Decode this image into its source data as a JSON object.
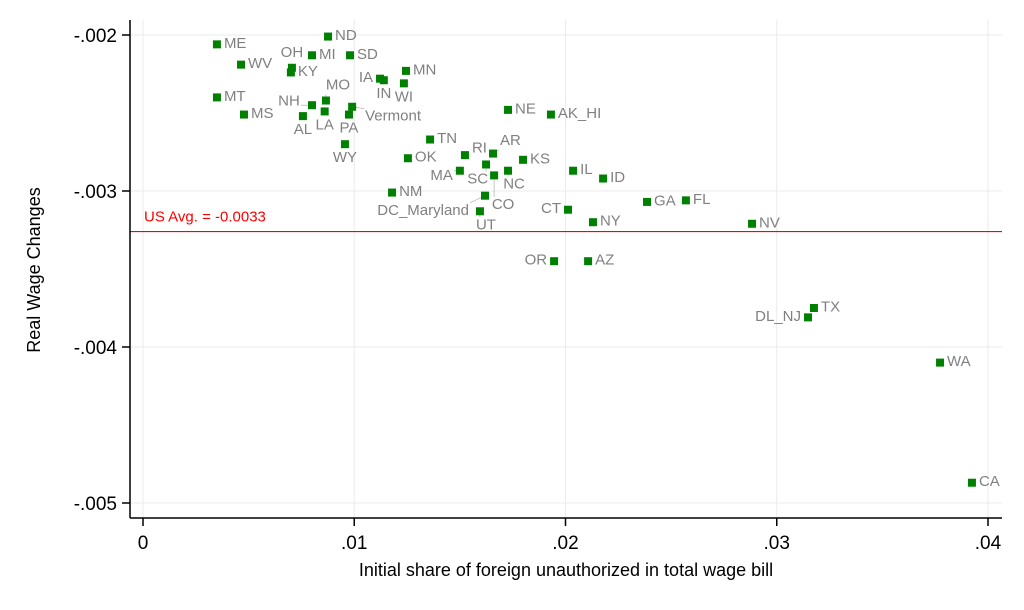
{
  "chart_data": {
    "type": "scatter",
    "title": "",
    "xlabel": "Initial share of foreign unauthorized in total wage bill",
    "ylabel": "Real Wage Changes",
    "xlim": [
      -0.0003,
      0.0406
    ],
    "ylim": [
      -0.00509,
      -0.00199
    ],
    "xticks": [
      {
        "v": 0,
        "label": "0"
      },
      {
        "v": 0.01,
        "label": ".01"
      },
      {
        "v": 0.02,
        "label": ".02"
      },
      {
        "v": 0.03,
        "label": ".03"
      },
      {
        "v": 0.04,
        "label": ".04"
      }
    ],
    "yticks": [
      {
        "v": -0.002,
        "label": "-.002"
      },
      {
        "v": -0.003,
        "label": "-.003"
      },
      {
        "v": -0.004,
        "label": "-.004"
      },
      {
        "v": -0.005,
        "label": "-.005"
      }
    ],
    "grid": true,
    "marker_color": "#008000",
    "label_color": "#808080",
    "reference_line": {
      "y": -0.00326,
      "label": "US Avg. = -0.0033",
      "color": "#ff0000"
    },
    "points": [
      {
        "label": "ME",
        "x": 0.0035,
        "y": -0.00206
      },
      {
        "label": "ND",
        "x": 0.00876,
        "y": -0.00201
      },
      {
        "label": "MI",
        "x": 0.008,
        "y": -0.00213
      },
      {
        "label": "SD",
        "x": 0.0098,
        "y": -0.00213
      },
      {
        "label": "WV",
        "x": 0.00464,
        "y": -0.00219
      },
      {
        "label": "OH",
        "x": 0.00705,
        "y": -0.00221
      },
      {
        "label": "KY",
        "x": 0.007,
        "y": -0.00224
      },
      {
        "label": "IA",
        "x": 0.01122,
        "y": -0.00228
      },
      {
        "label": "IN",
        "x": 0.0114,
        "y": -0.00229
      },
      {
        "label": "MN",
        "x": 0.01245,
        "y": -0.00223
      },
      {
        "label": "WI",
        "x": 0.01235,
        "y": -0.00231
      },
      {
        "label": "MT",
        "x": 0.0035,
        "y": -0.0024
      },
      {
        "label": "MS",
        "x": 0.00478,
        "y": -0.00251
      },
      {
        "label": "NH",
        "x": 0.008,
        "y": -0.00245
      },
      {
        "label": "MO",
        "x": 0.00866,
        "y": -0.00242
      },
      {
        "label": "LA",
        "x": 0.0086,
        "y": -0.00249
      },
      {
        "label": "AL",
        "x": 0.00757,
        "y": -0.00252
      },
      {
        "label": "Vermont",
        "x": 0.0099,
        "y": -0.00246
      },
      {
        "label": "PA",
        "x": 0.00975,
        "y": -0.00251
      },
      {
        "label": "NE",
        "x": 0.01728,
        "y": -0.00248
      },
      {
        "label": "AK_HI",
        "x": 0.01931,
        "y": -0.00251
      },
      {
        "label": "WY",
        "x": 0.00956,
        "y": -0.0027
      },
      {
        "label": "TN",
        "x": 0.01359,
        "y": -0.00267
      },
      {
        "label": "OK",
        "x": 0.01254,
        "y": -0.00279
      },
      {
        "label": "RI",
        "x": 0.01524,
        "y": -0.00277
      },
      {
        "label": "AR",
        "x": 0.01657,
        "y": -0.00276
      },
      {
        "label": "SC",
        "x": 0.01624,
        "y": -0.00283
      },
      {
        "label": "KS",
        "x": 0.01799,
        "y": -0.0028
      },
      {
        "label": "MA",
        "x": 0.015,
        "y": -0.00287
      },
      {
        "label": "NC",
        "x": 0.01728,
        "y": -0.00287
      },
      {
        "label": "CO",
        "x": 0.01662,
        "y": -0.0029
      },
      {
        "label": "IL",
        "x": 0.02036,
        "y": -0.00287
      },
      {
        "label": "ID",
        "x": 0.02178,
        "y": -0.00292
      },
      {
        "label": "NM",
        "x": 0.01179,
        "y": -0.00301
      },
      {
        "label": "DC_Maryland",
        "x": 0.01619,
        "y": -0.00303
      },
      {
        "label": "UT",
        "x": 0.01595,
        "y": -0.00313
      },
      {
        "label": "CT",
        "x": 0.02012,
        "y": -0.00312
      },
      {
        "label": "NY",
        "x": 0.0213,
        "y": -0.0032
      },
      {
        "label": "GA",
        "x": 0.02386,
        "y": -0.00307
      },
      {
        "label": "FL",
        "x": 0.0257,
        "y": -0.00306
      },
      {
        "label": "NV",
        "x": 0.02883,
        "y": -0.00321
      },
      {
        "label": "OR",
        "x": 0.01946,
        "y": -0.00345
      },
      {
        "label": "AZ",
        "x": 0.02107,
        "y": -0.00345
      },
      {
        "label": "TX",
        "x": 0.03176,
        "y": -0.00375
      },
      {
        "label": "DL_NJ",
        "x": 0.03148,
        "y": -0.00381
      },
      {
        "label": "WA",
        "x": 0.03773,
        "y": -0.0041
      },
      {
        "label": "CA",
        "x": 0.03924,
        "y": -0.00487
      }
    ]
  }
}
